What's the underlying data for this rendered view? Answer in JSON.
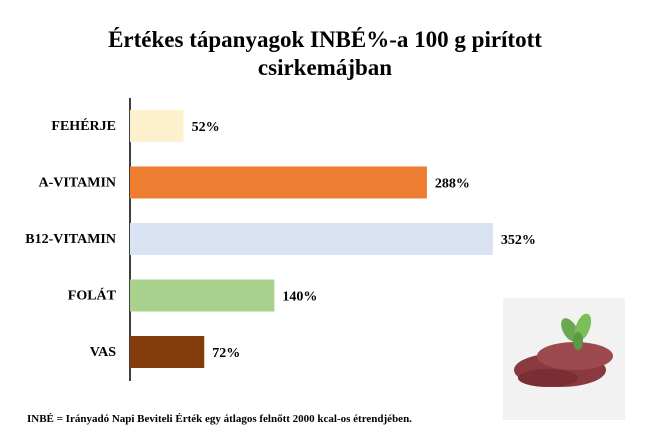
{
  "chart_data": {
    "type": "bar",
    "orientation": "horizontal",
    "title": "Értékes tápanyagok INBÉ%-a 100 g pirított csirkemájban",
    "categories": [
      "FEHÉRJE",
      "A-VITAMIN",
      "B12-VITAMIN",
      "FOLÁT",
      "VAS"
    ],
    "values": [
      52,
      288,
      352,
      140,
      72
    ],
    "value_labels": [
      "52%",
      "288%",
      "352%",
      "140%",
      "72%"
    ],
    "colors": [
      "#fdf0cc",
      "#ed7d31",
      "#dae3f3",
      "#a9d18e",
      "#843c0c"
    ],
    "footnote": "INBÉ = Irányadó Napi Beviteli Érték egy átlagos felnőtt 2000 kcal-os étrendjében."
  }
}
